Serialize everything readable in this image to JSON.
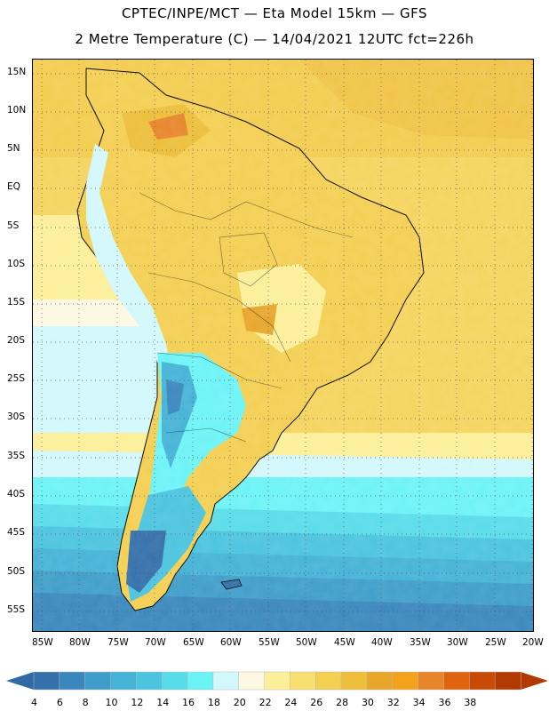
{
  "header": {
    "line1": "CPTEC/INPE/MCT —  Eta Model 15km — GFS",
    "line2": "2 Metre Temperature (C) — 14/04/2021 12UTC fct=226h"
  },
  "axes": {
    "lat_labels": [
      "15N",
      "10N",
      "5N",
      "EQ",
      "5S",
      "10S",
      "15S",
      "20S",
      "25S",
      "30S",
      "35S",
      "40S",
      "45S",
      "50S",
      "55S"
    ],
    "lon_labels": [
      "85W",
      "80W",
      "75W",
      "70W",
      "65W",
      "60W",
      "55W",
      "50W",
      "45W",
      "40W",
      "35W",
      "30W",
      "25W",
      "20W"
    ]
  },
  "colorbar": {
    "labels": [
      "4",
      "6",
      "8",
      "10",
      "12",
      "14",
      "16",
      "18",
      "20",
      "22",
      "24",
      "26",
      "28",
      "30",
      "32",
      "34",
      "36",
      "38"
    ],
    "colors": [
      "#3470aa",
      "#3a87bd",
      "#3f9ec9",
      "#45b3d6",
      "#4cc4df",
      "#59dcea",
      "#6cf3f6",
      "#d2f8fb",
      "#fdf8e2",
      "#fcef99",
      "#f8df70",
      "#f3cf52",
      "#ecbe3a",
      "#e8a62a",
      "#f2a31b",
      "#e8852a",
      "#e06310",
      "#c84a05",
      "#b03a00"
    ],
    "low_color": "#2f6aa5",
    "high_color": "#b03a00"
  }
}
